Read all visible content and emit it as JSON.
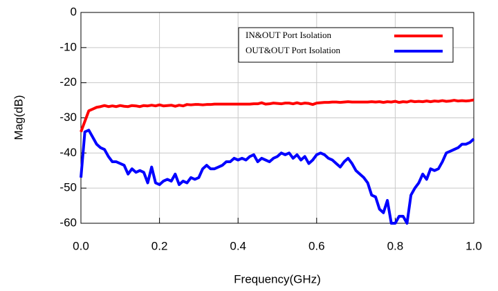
{
  "chart_data": {
    "type": "line",
    "xlabel": "Frequency(GHz)",
    "ylabel": "Mag(dB)",
    "x": [
      0,
      0.01,
      0.02,
      0.03,
      0.04,
      0.05,
      0.06,
      0.07,
      0.08,
      0.09,
      0.1,
      0.11,
      0.12,
      0.13,
      0.14,
      0.15,
      0.16,
      0.17,
      0.18,
      0.19,
      0.2,
      0.21,
      0.22,
      0.23,
      0.24,
      0.25,
      0.26,
      0.27,
      0.28,
      0.29,
      0.3,
      0.31,
      0.32,
      0.33,
      0.34,
      0.35,
      0.36,
      0.37,
      0.38,
      0.39,
      0.4,
      0.41,
      0.42,
      0.43,
      0.44,
      0.45,
      0.46,
      0.47,
      0.48,
      0.49,
      0.5,
      0.51,
      0.52,
      0.53,
      0.54,
      0.55,
      0.56,
      0.57,
      0.58,
      0.59,
      0.6,
      0.61,
      0.62,
      0.63,
      0.64,
      0.65,
      0.66,
      0.67,
      0.68,
      0.69,
      0.7,
      0.71,
      0.72,
      0.73,
      0.74,
      0.75,
      0.76,
      0.77,
      0.78,
      0.79,
      0.8,
      0.81,
      0.82,
      0.83,
      0.84,
      0.85,
      0.86,
      0.87,
      0.88,
      0.89,
      0.9,
      0.91,
      0.92,
      0.93,
      0.94,
      0.95,
      0.96,
      0.97,
      0.98,
      0.99,
      1
    ],
    "series": [
      {
        "name": "IN&OUT Port Isolation",
        "color": "#ff0000",
        "values": [
          -34,
          -31,
          -28,
          -27.5,
          -27,
          -26.8,
          -26.5,
          -26.8,
          -26.6,
          -26.8,
          -26.5,
          -26.7,
          -26.8,
          -26.5,
          -26.6,
          -26.8,
          -26.5,
          -26.6,
          -26.4,
          -26.6,
          -26.3,
          -26.6,
          -26.5,
          -26.4,
          -26.7,
          -26.4,
          -26.6,
          -26.2,
          -26.3,
          -26.2,
          -26.2,
          -26.3,
          -26.2,
          -26.2,
          -26.1,
          -26.1,
          -26.1,
          -26.1,
          -26.1,
          -26.1,
          -26.1,
          -26.1,
          -26.1,
          -26.1,
          -26,
          -26,
          -25.7,
          -26.1,
          -26,
          -25.8,
          -25.9,
          -26,
          -25.8,
          -25.8,
          -26,
          -25.7,
          -26,
          -25.8,
          -25.9,
          -26.2,
          -25.8,
          -25.7,
          -25.6,
          -25.6,
          -25.5,
          -25.5,
          -25.6,
          -25.5,
          -25.4,
          -25.5,
          -25.5,
          -25.5,
          -25.5,
          -25.5,
          -25.4,
          -25.5,
          -25.4,
          -25.6,
          -25.4,
          -25.5,
          -25.3,
          -25.6,
          -25.4,
          -25.5,
          -25.2,
          -25.4,
          -25.3,
          -25.4,
          -25.2,
          -25.4,
          -25.2,
          -25.3,
          -25.1,
          -25.3,
          -25.2,
          -25,
          -25.2,
          -25.1,
          -25.2,
          -25.1,
          -24.9
        ]
      },
      {
        "name": "OUT&OUT Port Isolation",
        "color": "#0000ff",
        "values": [
          -47,
          -34,
          -33.5,
          -35.5,
          -37.5,
          -38.5,
          -39,
          -41,
          -42.5,
          -42.5,
          -43,
          -43.5,
          -46,
          -44.5,
          -45.5,
          -45,
          -45.5,
          -48.5,
          -44,
          -48.5,
          -49,
          -48,
          -47.5,
          -48,
          -46,
          -49,
          -48,
          -48.5,
          -47,
          -47.5,
          -47,
          -44.5,
          -43.5,
          -44.5,
          -44.5,
          -44,
          -43.5,
          -42.5,
          -42.5,
          -41.5,
          -42,
          -41.5,
          -42,
          -41,
          -40.5,
          -42.5,
          -41.5,
          -42,
          -42.5,
          -41.5,
          -41,
          -40,
          -40.5,
          -40,
          -41.5,
          -40.5,
          -42,
          -41,
          -43,
          -42,
          -40.5,
          -40,
          -40.5,
          -41.5,
          -42,
          -43,
          -44,
          -42.5,
          -41.5,
          -43,
          -45,
          -46,
          -47,
          -48.5,
          -52,
          -52.5,
          -56,
          -57,
          -53.5,
          -60,
          -60,
          -58,
          -58,
          -60,
          -52,
          -50,
          -48.5,
          -46,
          -47.5,
          -44.5,
          -45,
          -44.5,
          -42.5,
          -40,
          -39.5,
          -39,
          -38.5,
          -37.5,
          -37.5,
          -37,
          -36
        ]
      }
    ],
    "xlim": [
      0,
      1
    ],
    "ylim": [
      -60,
      0
    ],
    "xticks": [
      {
        "value": 0,
        "label": "0.0"
      },
      0.2,
      0.4,
      0.6,
      0.8,
      {
        "value": 1,
        "label": "1.0"
      }
    ],
    "yticks": [
      0,
      -10,
      -20,
      -30,
      -40,
      -50,
      -60
    ],
    "grid": true,
    "legend": "upper right"
  }
}
